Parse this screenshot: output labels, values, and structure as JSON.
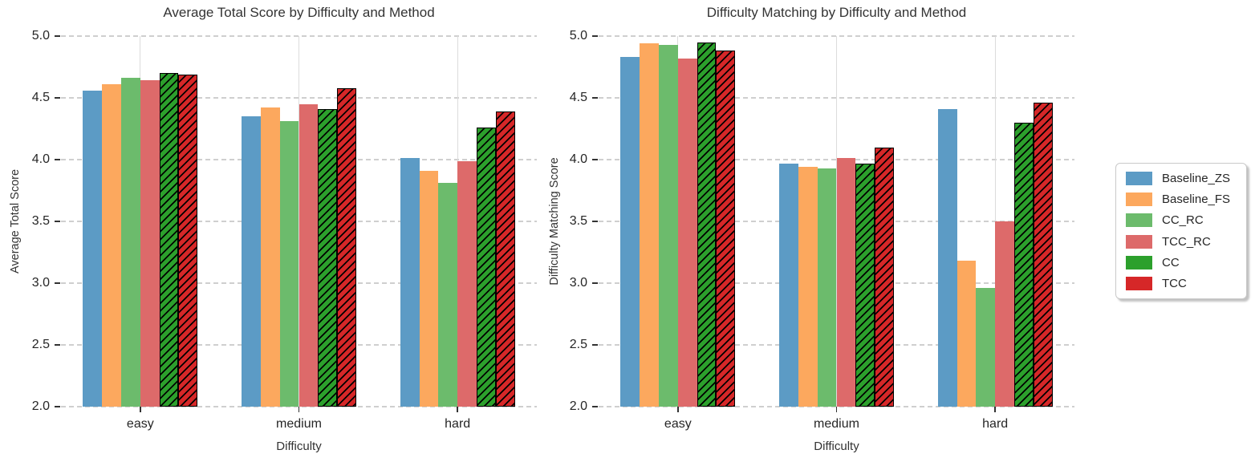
{
  "figure": {
    "background": "#ffffff"
  },
  "chart_data": [
    {
      "type": "bar",
      "title": "Average Total Score by Difficulty and Method",
      "ylabel": "Average Total Score",
      "xlabel": "Difficulty",
      "categories": [
        "easy",
        "medium",
        "hard"
      ],
      "ylim": [
        2.0,
        5.0
      ],
      "ytick_labels": [
        "5.0",
        "4.5",
        "4.0",
        "3.5",
        "3.0",
        "2.5",
        "2.0"
      ],
      "grid": "horizontal-dashed-and-vertical-solid",
      "series": [
        {
          "name": "Baseline_ZS",
          "color": "#5C9BC5",
          "hatch": false,
          "values": [
            4.56,
            4.35,
            4.01
          ]
        },
        {
          "name": "Baseline_FS",
          "color": "#FCA85E",
          "hatch": false,
          "values": [
            4.61,
            4.42,
            3.91
          ]
        },
        {
          "name": "CC_RC",
          "color": "#6CBB6C",
          "hatch": false,
          "values": [
            4.66,
            4.31,
            3.81
          ]
        },
        {
          "name": "TCC_RC",
          "color": "#DD6A6A",
          "hatch": false,
          "values": [
            4.64,
            4.45,
            3.99
          ]
        },
        {
          "name": "CC",
          "color": "#2CA02C",
          "hatch": true,
          "values": [
            4.7,
            4.41,
            4.26
          ]
        },
        {
          "name": "TCC",
          "color": "#D62728",
          "hatch": true,
          "values": [
            4.69,
            4.58,
            4.39
          ]
        }
      ]
    },
    {
      "type": "bar",
      "title": "Difficulty Matching by Difficulty and Method",
      "ylabel": "Difficulty Matching Score",
      "xlabel": "Difficulty",
      "categories": [
        "easy",
        "medium",
        "hard"
      ],
      "ylim": [
        2.0,
        5.0
      ],
      "ytick_labels": [
        "5.0",
        "4.5",
        "4.0",
        "3.5",
        "3.0",
        "2.5",
        "2.0"
      ],
      "grid": "horizontal-dashed-and-vertical-solid",
      "series": [
        {
          "name": "Baseline_ZS",
          "color": "#5C9BC5",
          "hatch": false,
          "values": [
            4.83,
            3.97,
            4.41
          ]
        },
        {
          "name": "Baseline_FS",
          "color": "#FCA85E",
          "hatch": false,
          "values": [
            4.94,
            3.94,
            3.18
          ]
        },
        {
          "name": "CC_RC",
          "color": "#6CBB6C",
          "hatch": false,
          "values": [
            4.93,
            3.93,
            2.96
          ]
        },
        {
          "name": "TCC_RC",
          "color": "#DD6A6A",
          "hatch": false,
          "values": [
            4.82,
            4.01,
            3.5
          ]
        },
        {
          "name": "CC",
          "color": "#2CA02C",
          "hatch": true,
          "values": [
            4.95,
            3.97,
            4.3
          ]
        },
        {
          "name": "TCC",
          "color": "#D62728",
          "hatch": true,
          "values": [
            4.88,
            4.1,
            4.46
          ]
        }
      ]
    }
  ],
  "legend": {
    "items": [
      {
        "label": "Baseline_ZS",
        "color": "#5C9BC5"
      },
      {
        "label": "Baseline_FS",
        "color": "#FCA85E"
      },
      {
        "label": "CC_RC",
        "color": "#6CBB6C"
      },
      {
        "label": "TCC_RC",
        "color": "#DD6A6A"
      },
      {
        "label": "CC",
        "color": "#2CA02C"
      },
      {
        "label": "TCC",
        "color": "#D62728"
      }
    ]
  }
}
